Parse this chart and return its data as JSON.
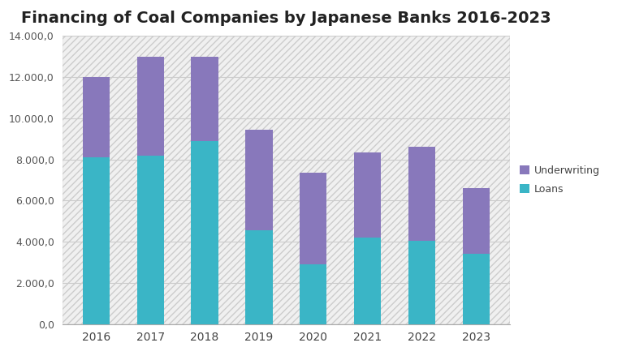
{
  "title": "Financing of Coal Companies by Japanese Banks 2016-2023",
  "years": [
    2016,
    2017,
    2018,
    2019,
    2020,
    2021,
    2022,
    2023
  ],
  "loans": [
    8100,
    8200,
    8900,
    4550,
    2900,
    4200,
    4050,
    3400
  ],
  "underwriting": [
    3900,
    4800,
    4100,
    4900,
    4450,
    4150,
    4550,
    3200
  ],
  "loans_color": "#3ab5c6",
  "underwriting_color": "#8878bb",
  "background_color": "#ffffff",
  "hatch_bg_color": "#ebebeb",
  "ylim": [
    0,
    14000
  ],
  "yticks": [
    0,
    2000,
    4000,
    6000,
    8000,
    10000,
    12000,
    14000
  ],
  "legend_labels": [
    "Underwriting",
    "Loans"
  ],
  "title_fontsize": 14,
  "bar_width": 0.5,
  "grid_color": "#cccccc"
}
